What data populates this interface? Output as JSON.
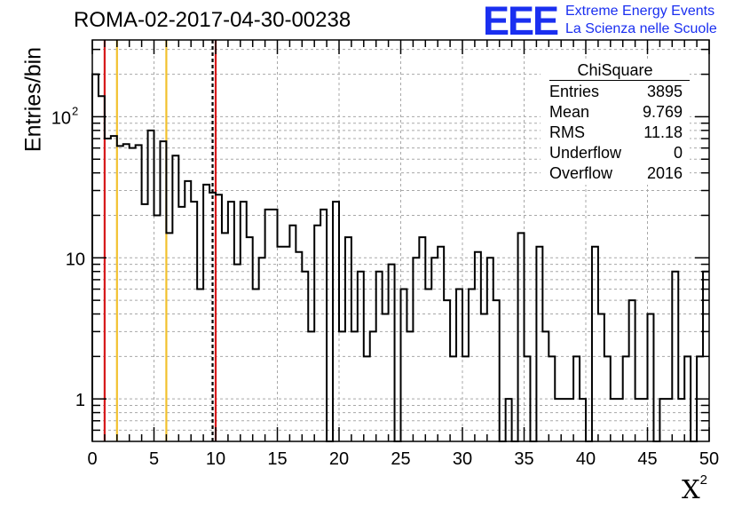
{
  "header": {
    "title": "ROMA-02-2017-04-30-00238",
    "logo_text": "EEE",
    "org_line1": "Extreme Energy Events",
    "org_line2": "La Scienza nelle Scuole",
    "brand_color": "#1a2ff0"
  },
  "stats_box": {
    "title": "ChiSquare",
    "rows": [
      {
        "key": "Entries",
        "value": "3895"
      },
      {
        "key": "Mean",
        "value": "9.769"
      },
      {
        "key": "RMS",
        "value": "11.18"
      },
      {
        "key": "Underflow",
        "value": "0"
      },
      {
        "key": "Overflow",
        "value": "2016"
      }
    ]
  },
  "chart_data": {
    "type": "histogram",
    "title": "ROMA-02-2017-04-30-00238",
    "xlabel": "X",
    "xlabel_superscript": "2",
    "ylabel": "Entries/bin",
    "xlim": [
      0,
      50
    ],
    "ylim": [
      0.5,
      350
    ],
    "yscale": "log",
    "grid": true,
    "bin_width": 0.5,
    "x_ticks": [
      "0",
      "5",
      "10",
      "15",
      "20",
      "25",
      "30",
      "35",
      "40",
      "45",
      "50"
    ],
    "y_ticks": [
      {
        "value": 1,
        "label": "1"
      },
      {
        "value": 10,
        "label": "10"
      },
      {
        "value": 100,
        "label": "10",
        "exponent": "2"
      }
    ],
    "values": [
      200,
      140,
      70,
      73,
      62,
      64,
      60,
      63,
      24,
      80,
      20,
      67,
      15,
      53,
      23,
      35,
      25,
      6,
      33,
      29,
      28,
      15,
      25,
      9,
      25,
      14,
      6,
      10,
      22,
      22,
      12,
      12,
      17,
      11,
      8,
      3,
      17,
      22,
      0.5,
      25,
      3,
      14,
      3,
      8,
      2,
      3,
      8,
      4,
      9,
      0.5,
      6,
      3,
      10,
      14,
      6,
      10,
      12,
      5,
      2,
      6,
      2,
      6,
      11,
      4,
      10,
      5,
      0.5,
      1,
      0.5,
      15,
      2,
      0.5,
      12,
      3,
      2,
      1,
      1,
      1,
      2,
      1,
      0.5,
      12,
      4,
      2,
      1,
      1,
      2,
      5,
      1,
      1,
      4,
      0.5,
      1,
      1,
      8,
      1,
      2,
      0.5,
      2,
      8
    ],
    "vertical_lines": [
      {
        "x": 1,
        "color": "#d6191b",
        "style": "solid"
      },
      {
        "x": 2,
        "color": "#f2c12e",
        "style": "solid"
      },
      {
        "x": 6,
        "color": "#f2c12e",
        "style": "solid"
      },
      {
        "x": 9.75,
        "color": "#000000",
        "style": "dashed"
      },
      {
        "x": 10,
        "color": "#d6191b",
        "style": "solid"
      }
    ]
  }
}
